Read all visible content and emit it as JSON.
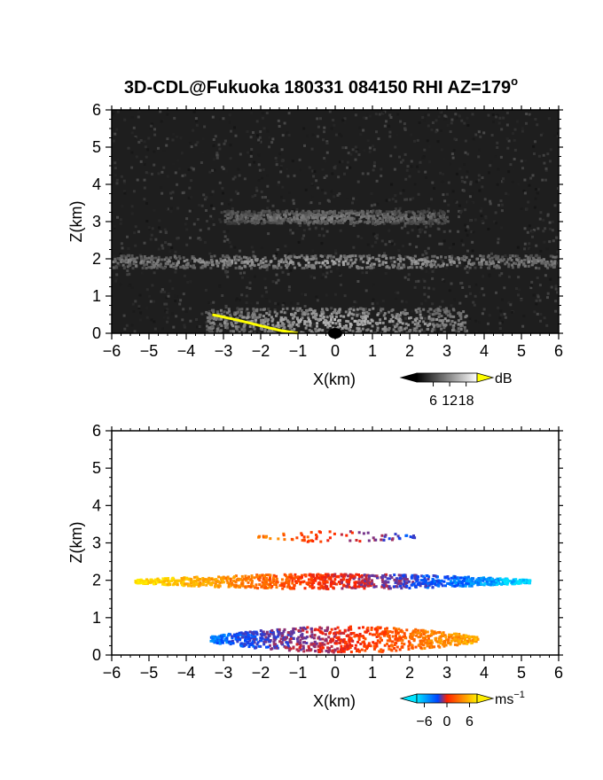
{
  "title": "3D-CDL@Fukuoka 180331 084150 RHI AZ=179",
  "title_superscript": "o",
  "chart_data": [
    {
      "type": "heatmap",
      "panel": "top",
      "quantity": "reflectivity (SNR)",
      "title": "3D-CDL@Fukuoka 180331 084150 RHI AZ=179°",
      "xlabel": "X(km)",
      "ylabel": "Z(km)",
      "xlim": [
        -6,
        6
      ],
      "ylim": [
        0,
        6
      ],
      "xticks": [
        -6,
        -5,
        -4,
        -3,
        -2,
        -1,
        0,
        1,
        2,
        3,
        4,
        5,
        6
      ],
      "yticks": [
        0,
        1,
        2,
        3,
        4,
        5,
        6
      ],
      "colorbar": {
        "unit": "dB",
        "ticks": [
          6,
          12,
          18
        ],
        "colormap": "grayscale",
        "over_color": "#ffff00"
      },
      "features": [
        {
          "name": "layer",
          "x_range": [
            -6,
            6
          ],
          "z_center": 1.95,
          "z_thickness": 0.35,
          "level_db": 12
        },
        {
          "name": "layer",
          "x_range": [
            -3,
            3
          ],
          "z_center": 3.15,
          "z_thickness": 0.35,
          "level_db": 8
        },
        {
          "name": "near-ground",
          "x_range": [
            -3.5,
            3.5
          ],
          "z_range": [
            0,
            0.7
          ],
          "level_db": 14
        }
      ],
      "saturated_trace": [
        {
          "x": -3.3,
          "z": 0.5
        },
        {
          "x": -2.6,
          "z": 0.35
        },
        {
          "x": -2.0,
          "z": 0.2
        },
        {
          "x": -1.5,
          "z": 0.08
        },
        {
          "x": -1.0,
          "z": 0.0
        }
      ],
      "colors": {
        "background": "#1e1e1e",
        "saturation": "#ffff00"
      }
    },
    {
      "type": "heatmap",
      "panel": "bottom",
      "quantity": "radial velocity",
      "xlabel": "X(km)",
      "ylabel": "Z(km)",
      "xlim": [
        -6,
        6
      ],
      "ylim": [
        0,
        6
      ],
      "xticks": [
        -6,
        -5,
        -4,
        -3,
        -2,
        -1,
        0,
        1,
        2,
        3,
        4,
        5,
        6
      ],
      "yticks": [
        0,
        1,
        2,
        3,
        4,
        5,
        6
      ],
      "colorbar": {
        "unit": "ms",
        "unit_superscript": "−1",
        "ticks": [
          "−6",
          "0",
          "6"
        ],
        "tick_values": [
          -6,
          0,
          6
        ],
        "colors": [
          "#00e5ff",
          "#0044ff",
          "#ff2200",
          "#ffee00"
        ]
      },
      "features": [
        {
          "name": "layer",
          "x_range": [
            -5.4,
            5.2
          ],
          "z_center": 2.0,
          "z_thickness": 0.4,
          "velocity_left": 6,
          "velocity_right": -6
        },
        {
          "name": "layer",
          "x_range": [
            -2.1,
            2.1
          ],
          "z_center": 3.2,
          "z_thickness": 0.3,
          "velocity_left": 3,
          "velocity_right": -3
        },
        {
          "name": "near-ground",
          "x_range": [
            -3.4,
            3.8
          ],
          "z_range": [
            0.1,
            0.8
          ],
          "velocity_left": -4,
          "velocity_right": 4
        }
      ],
      "colors": {
        "negative": "#0044ff",
        "zero": "#ff2200",
        "positive": "#ffee00",
        "far_negative": "#00e5ff"
      }
    }
  ]
}
